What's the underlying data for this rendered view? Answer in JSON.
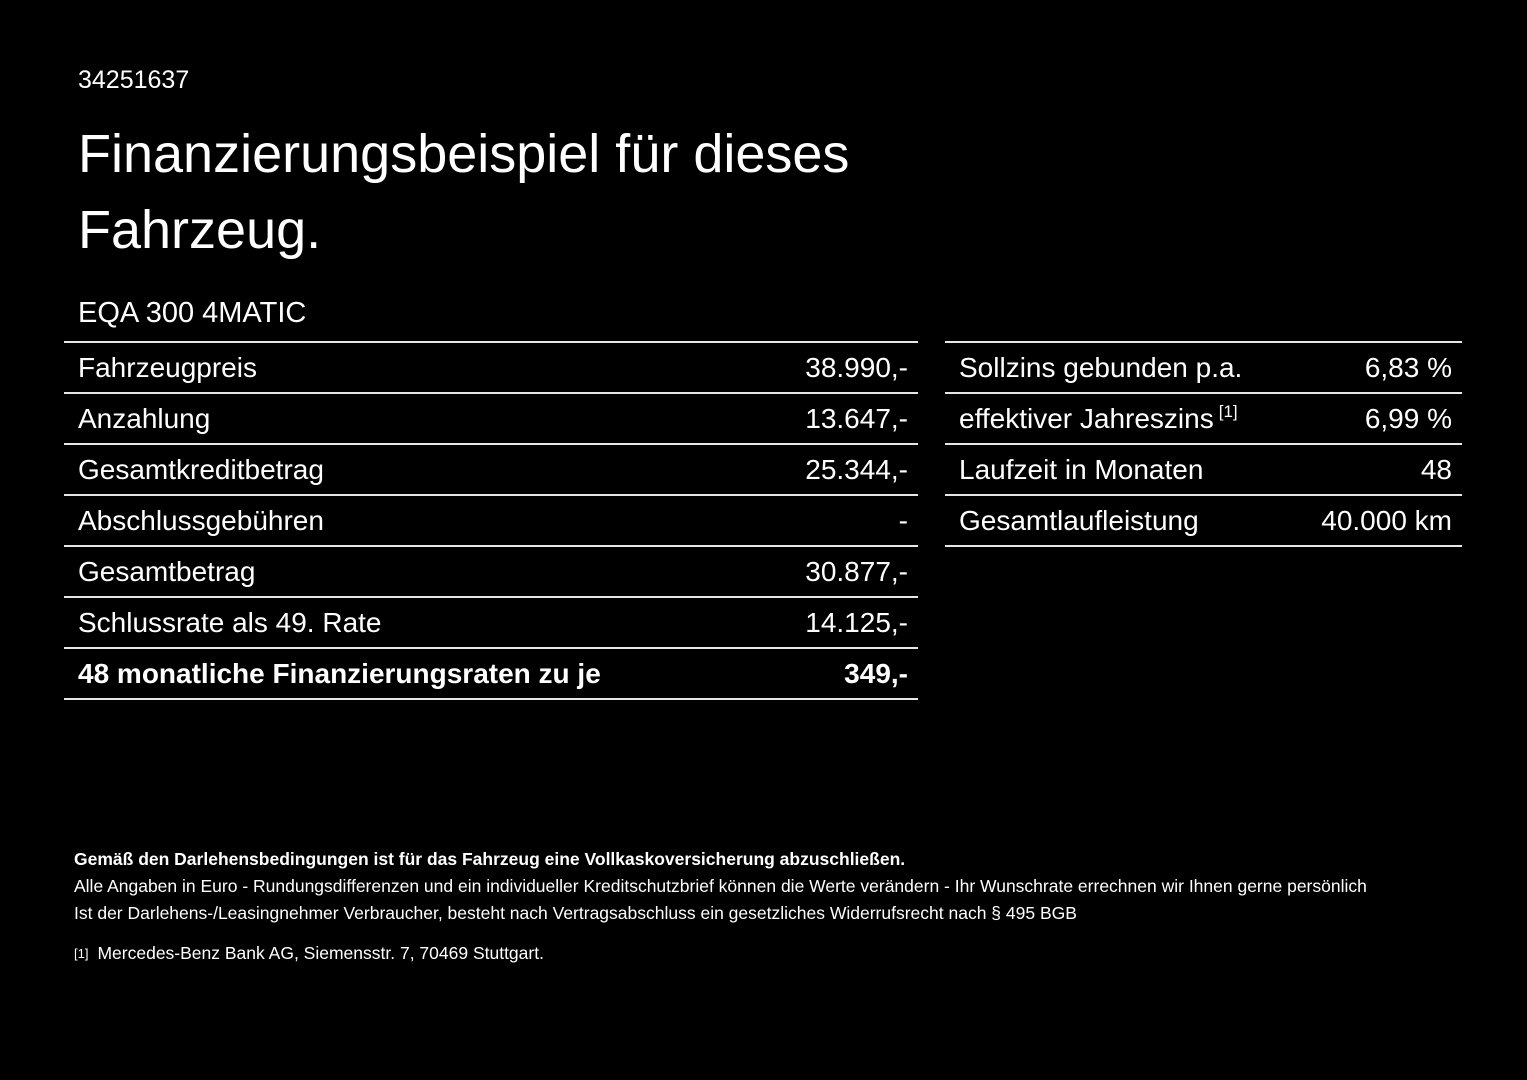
{
  "page": {
    "id_number": "34251637",
    "title_line1": "Finanzierungsbeispiel für dieses",
    "title_line2": "Fahrzeug.",
    "vehicle_model": "EQA 300 4MATIC"
  },
  "left_table": {
    "rows": [
      {
        "label": "Fahrzeugpreis",
        "value": "38.990,-"
      },
      {
        "label": "Anzahlung",
        "value": "13.647,-"
      },
      {
        "label": "Gesamtkreditbetrag",
        "value": "25.344,-"
      },
      {
        "label": "Abschlussgebühren",
        "value": "-"
      },
      {
        "label": "Gesamtbetrag",
        "value": "30.877,-"
      },
      {
        "label": "Schlussrate als 49. Rate",
        "value": "14.125,-"
      },
      {
        "label": "48 monatliche Finanzierungsraten zu je",
        "value": "349,-"
      }
    ]
  },
  "right_table": {
    "rows": [
      {
        "label": "Sollzins gebunden p.a.",
        "value": "6,83 %"
      },
      {
        "label": "effektiver Jahreszins",
        "sup": "[1]",
        "value": "6,99 %"
      },
      {
        "label": "Laufzeit in Monaten",
        "value": "48"
      },
      {
        "label": "Gesamtlaufleistung",
        "value": "40.000 km"
      }
    ]
  },
  "footer": {
    "insurance_note": "Gemäß den Darlehensbedingungen ist für das Fahrzeug eine Vollkaskoversicherung abzuschließen.",
    "disclaimer_line1": "Alle Angaben in Euro - Rundungsdifferenzen und ein individueller Kreditschutzbrief können die Werte verändern - Ihr Wunschrate errechnen wir Ihnen gerne persönlich",
    "disclaimer_line2": "Ist der Darlehens-/Leasingnehmer Verbraucher, besteht nach Vertragsabschluss ein gesetzliches Widerrufsrecht nach § 495 BGB",
    "footnote_marker": "[1]",
    "footnote_text": "Mercedes-Benz Bank AG, Siemensstr. 7, 70469 Stuttgart."
  },
  "colors": {
    "background": "#000000",
    "text": "#ffffff",
    "divider": "#e6e6e6"
  }
}
